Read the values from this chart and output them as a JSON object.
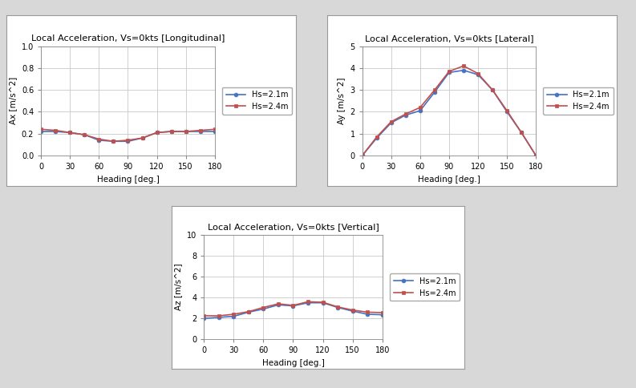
{
  "headings": [
    0,
    15,
    30,
    45,
    60,
    75,
    90,
    105,
    120,
    135,
    150,
    165,
    180
  ],
  "longitudinal": {
    "title": "Local Acceleration, Vs=0kts [Longitudinal]",
    "ylabel": "Ax [m/s^2]",
    "xlabel": "Heading [deg.]",
    "ylim": [
      0,
      1
    ],
    "yticks": [
      0,
      0.2,
      0.4,
      0.6,
      0.8,
      1.0
    ],
    "xticks": [
      0,
      30,
      60,
      90,
      120,
      150,
      180
    ],
    "hs21": [
      0.22,
      0.22,
      0.21,
      0.19,
      0.14,
      0.13,
      0.13,
      0.16,
      0.21,
      0.22,
      0.22,
      0.22,
      0.22
    ],
    "hs24": [
      0.24,
      0.23,
      0.21,
      0.19,
      0.15,
      0.13,
      0.14,
      0.16,
      0.21,
      0.22,
      0.22,
      0.23,
      0.24
    ]
  },
  "lateral": {
    "title": "Local Acceleration, Vs=0kts [Lateral]",
    "ylabel": "Ay [m/s^2]",
    "xlabel": "Heading [deg.]",
    "ylim": [
      0,
      5
    ],
    "yticks": [
      0,
      1,
      2,
      3,
      4,
      5
    ],
    "xticks": [
      0,
      30,
      60,
      90,
      120,
      150,
      180
    ],
    "hs21": [
      0.0,
      0.8,
      1.5,
      1.85,
      2.05,
      2.9,
      3.8,
      3.9,
      3.7,
      3.0,
      2.0,
      1.05,
      0.0
    ],
    "hs24": [
      0.0,
      0.85,
      1.55,
      1.9,
      2.2,
      3.0,
      3.85,
      4.1,
      3.75,
      3.0,
      2.05,
      1.05,
      0.0
    ]
  },
  "vertical": {
    "title": "Local Acceleration, Vs=0kts [Vertical]",
    "ylabel": "Az [m/s^2]",
    "xlabel": "Heading [deg.]",
    "ylim": [
      0,
      10
    ],
    "yticks": [
      0,
      2,
      4,
      6,
      8,
      10
    ],
    "xticks": [
      0,
      30,
      60,
      90,
      120,
      150,
      180
    ],
    "hs21": [
      2.0,
      2.1,
      2.2,
      2.6,
      2.9,
      3.3,
      3.2,
      3.5,
      3.5,
      3.05,
      2.7,
      2.4,
      2.35
    ],
    "hs24": [
      2.25,
      2.25,
      2.4,
      2.65,
      3.05,
      3.4,
      3.25,
      3.6,
      3.55,
      3.1,
      2.8,
      2.6,
      2.55
    ]
  },
  "color_hs21": "#4472C4",
  "color_hs24": "#C0504D",
  "label_hs21": "Hs=2.1m",
  "label_hs24": "Hs=2.4m",
  "fig_facecolor": "#FFFFFF",
  "outer_facecolor": "#D8D8D8",
  "plot_bg": "#FFFFFF",
  "panel_bg": "#F0F0F0"
}
